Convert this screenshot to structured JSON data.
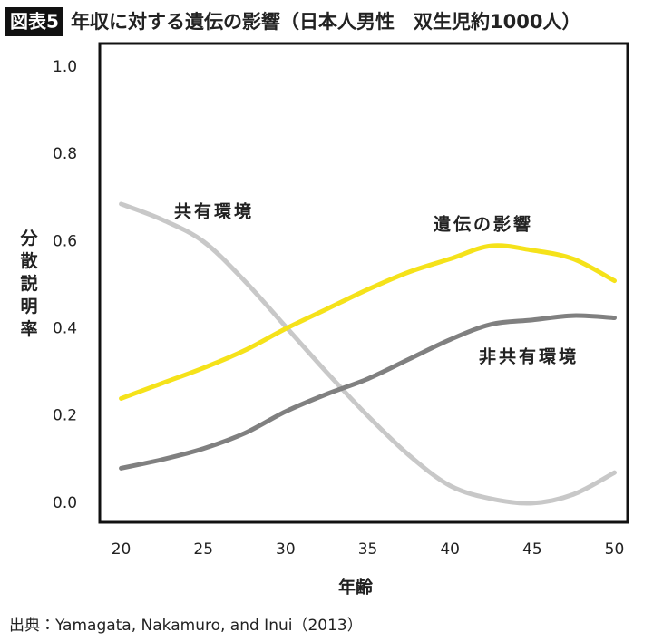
{
  "chart_data": {
    "type": "line",
    "figure_label": "図表5",
    "title": "年収に対する遺伝の影響（日本人男性　双生児約1000人）",
    "y_label": "分散説明率",
    "x_label": "年齢",
    "source": "出典：Yamagata, Nakamuro, and Inui（2013）",
    "x": [
      20,
      22.5,
      25,
      27.5,
      30,
      32.5,
      35,
      37.5,
      40,
      42.5,
      45,
      47.5,
      50
    ],
    "series": [
      {
        "name": "共有環境",
        "color": "#c8c8c8",
        "values": [
          0.686,
          0.65,
          0.6,
          0.51,
          0.405,
          0.3,
          0.2,
          0.11,
          0.04,
          0.01,
          0.0,
          0.02,
          0.07
        ]
      },
      {
        "name": "遺伝の影響",
        "color": "#f5e21a",
        "values": [
          0.24,
          0.275,
          0.31,
          0.35,
          0.4,
          0.445,
          0.49,
          0.53,
          0.56,
          0.59,
          0.58,
          0.56,
          0.51
        ]
      },
      {
        "name": "非共有環境",
        "color": "#808080",
        "values": [
          0.08,
          0.1,
          0.125,
          0.16,
          0.21,
          0.25,
          0.285,
          0.33,
          0.375,
          0.41,
          0.42,
          0.43,
          0.425
        ]
      }
    ],
    "xlim": [
      18.7,
      50.8
    ],
    "ylim": [
      -0.044,
      1.054
    ],
    "xticks": [
      20,
      25,
      30,
      35,
      40,
      45,
      50
    ],
    "yticks": [
      {
        "value": 0,
        "label": "0.0"
      },
      0.2,
      0.4,
      0.6,
      0.8,
      {
        "value": 1,
        "label": "1.0"
      }
    ]
  }
}
